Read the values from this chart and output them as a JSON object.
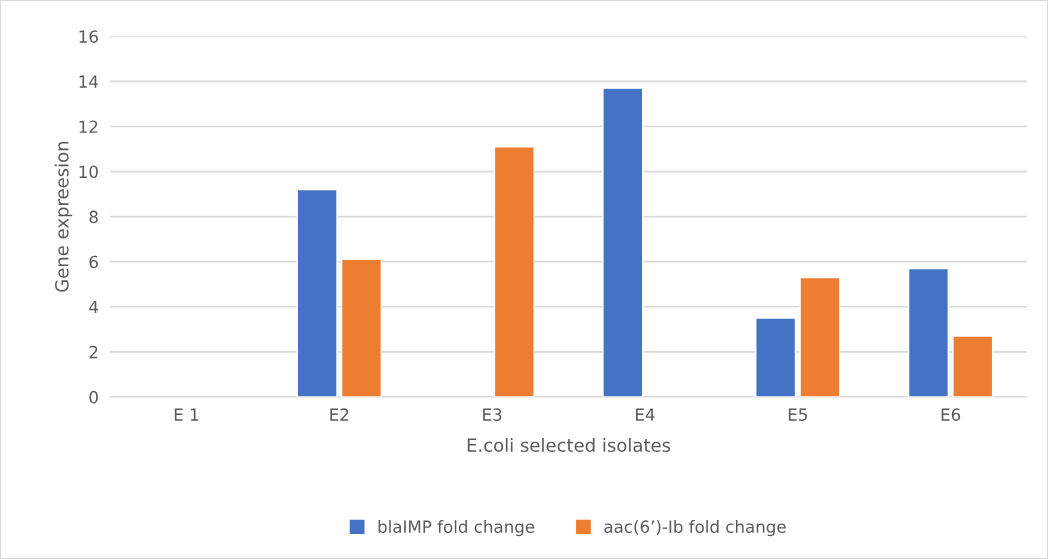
{
  "chart_data": {
    "type": "bar",
    "xlabel": "E.coli selected isolates",
    "ylabel": "Gene expreesion",
    "categories": [
      "E 1",
      "E2",
      "E3",
      "E4",
      "E5",
      "E6"
    ],
    "series": [
      {
        "name": "blaIMP fold change",
        "color": "#4472c4",
        "values": [
          null,
          9.2,
          null,
          13.7,
          3.5,
          5.7
        ]
      },
      {
        "name": "aac(6’)-Ib fold change",
        "color": "#ed7d31",
        "values": [
          null,
          6.1,
          11.1,
          null,
          5.3,
          2.7
        ]
      }
    ],
    "ylim": [
      0,
      16
    ],
    "yticks": [
      0,
      2,
      4,
      6,
      8,
      10,
      12,
      14,
      16
    ],
    "grid": "y",
    "legend": "bottom"
  }
}
